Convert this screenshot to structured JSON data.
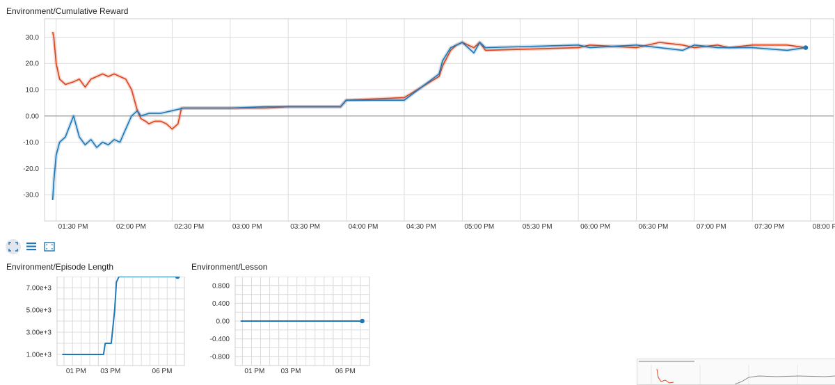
{
  "charts": {
    "cumulative_reward": {
      "title": "Environment/Cumulative Reward",
      "y_ticks": [
        "30.0",
        "20.0",
        "10.0",
        "0.00",
        "-10.0",
        "-20.0",
        "-30.0"
      ],
      "x_ticks": [
        "01:30 PM",
        "02:00 PM",
        "02:30 PM",
        "03:00 PM",
        "03:30 PM",
        "04:00 PM",
        "04:30 PM",
        "05:00 PM",
        "05:30 PM",
        "06:00 PM",
        "06:30 PM",
        "07:00 PM",
        "07:30 PM",
        "08:00 PM"
      ]
    },
    "episode_length": {
      "title": "Environment/Episode Length",
      "y_ticks": [
        "7.00e+3",
        "5.00e+3",
        "3.00e+3",
        "1.00e+3"
      ],
      "x_ticks": [
        "01 PM",
        "03 PM",
        "06 PM"
      ]
    },
    "lesson": {
      "title": "Environment/Lesson",
      "y_ticks": [
        "0.800",
        "0.400",
        "0.00",
        "-0.400",
        "-0.800"
      ],
      "x_ticks": [
        "01 PM",
        "03 PM",
        "06 PM"
      ]
    }
  },
  "toolbar": {
    "icons": [
      "fit-domain-icon",
      "toggle-log-icon",
      "expand-chart-icon"
    ]
  },
  "colors": {
    "orange": "#d9441d",
    "blue": "#1f77b4",
    "grid": "#dcdcdc"
  },
  "chart_data": [
    {
      "type": "line",
      "title": "Environment/Cumulative Reward",
      "x_unit": "hours after 01:00 PM",
      "x_range": [
        1.4,
        8.2
      ],
      "ylim": [
        -40,
        37
      ],
      "series": [
        {
          "color": "#d9441d",
          "x": [
            1.47,
            1.48,
            1.5,
            1.53,
            1.58,
            1.65,
            1.7,
            1.75,
            1.8,
            1.85,
            1.9,
            1.95,
            2.0,
            2.05,
            2.1,
            2.15,
            2.2,
            2.23,
            2.27,
            2.3,
            2.35,
            2.4,
            2.45,
            2.5,
            2.55,
            2.58,
            2.65,
            2.8,
            3.0,
            3.3,
            3.5,
            3.8,
            3.95,
            4.0,
            4.5,
            4.8,
            4.83,
            4.9,
            4.95,
            5.0,
            5.1,
            5.15,
            5.2,
            6.0,
            6.1,
            6.5,
            6.7,
            6.9,
            7.0,
            7.2,
            7.3,
            7.5,
            7.8,
            7.96
          ],
          "y": [
            32,
            30,
            20,
            14,
            12,
            13,
            14,
            11,
            14,
            15,
            16,
            15,
            16,
            15,
            14,
            10,
            2,
            -1,
            -2,
            -3,
            -2,
            -2,
            -3,
            -5,
            -3,
            3,
            3,
            3,
            3,
            3,
            3.5,
            3.5,
            3.5,
            6,
            7,
            15,
            19,
            25,
            27,
            28,
            26,
            28,
            25,
            26,
            27,
            26,
            28,
            27,
            26,
            27,
            26,
            27,
            27,
            26
          ]
        },
        {
          "color": "#1f77b4",
          "x": [
            1.47,
            1.48,
            1.5,
            1.53,
            1.58,
            1.65,
            1.7,
            1.75,
            1.8,
            1.85,
            1.9,
            1.95,
            2.0,
            2.05,
            2.1,
            2.15,
            2.2,
            2.23,
            2.3,
            2.4,
            2.5,
            2.6,
            2.8,
            3.0,
            3.3,
            3.5,
            3.8,
            3.95,
            4.0,
            4.5,
            4.8,
            4.83,
            4.9,
            4.95,
            5.0,
            5.1,
            5.15,
            5.2,
            6.0,
            6.1,
            6.5,
            6.7,
            6.9,
            7.0,
            7.2,
            7.3,
            7.5,
            7.8,
            7.96
          ],
          "y": [
            -32,
            -25,
            -15,
            -10,
            -8,
            0,
            -8,
            -11,
            -9,
            -12,
            -10,
            -11,
            -9,
            -10,
            -5,
            0,
            2,
            0,
            1,
            1,
            2,
            3,
            3,
            3,
            3.5,
            3.5,
            3.5,
            3.5,
            6,
            6,
            16,
            21,
            26,
            27,
            28,
            24,
            28,
            26,
            27,
            26,
            27,
            26,
            25,
            27,
            26,
            26,
            26,
            25,
            26
          ]
        }
      ]
    },
    {
      "type": "line",
      "title": "Environment/Episode Length",
      "x_unit": "hours after 01:00 PM",
      "x_range": [
        0.6,
        8.0
      ],
      "ylim": [
        0,
        8000
      ],
      "series": [
        {
          "color": "#1f77b4",
          "x": [
            0.9,
            3.3,
            3.4,
            3.75,
            3.95,
            4.05,
            4.2,
            7.6
          ],
          "y": [
            1000,
            1000,
            2000,
            2000,
            5000,
            7500,
            8000,
            8000
          ]
        }
      ]
    },
    {
      "type": "line",
      "title": "Environment/Lesson",
      "x_unit": "hours after 01:00 PM",
      "x_range": [
        0.6,
        8.0
      ],
      "ylim": [
        -1,
        1
      ],
      "series": [
        {
          "color": "#1f77b4",
          "x": [
            0.9,
            7.6
          ],
          "y": [
            0,
            0
          ]
        }
      ]
    }
  ]
}
